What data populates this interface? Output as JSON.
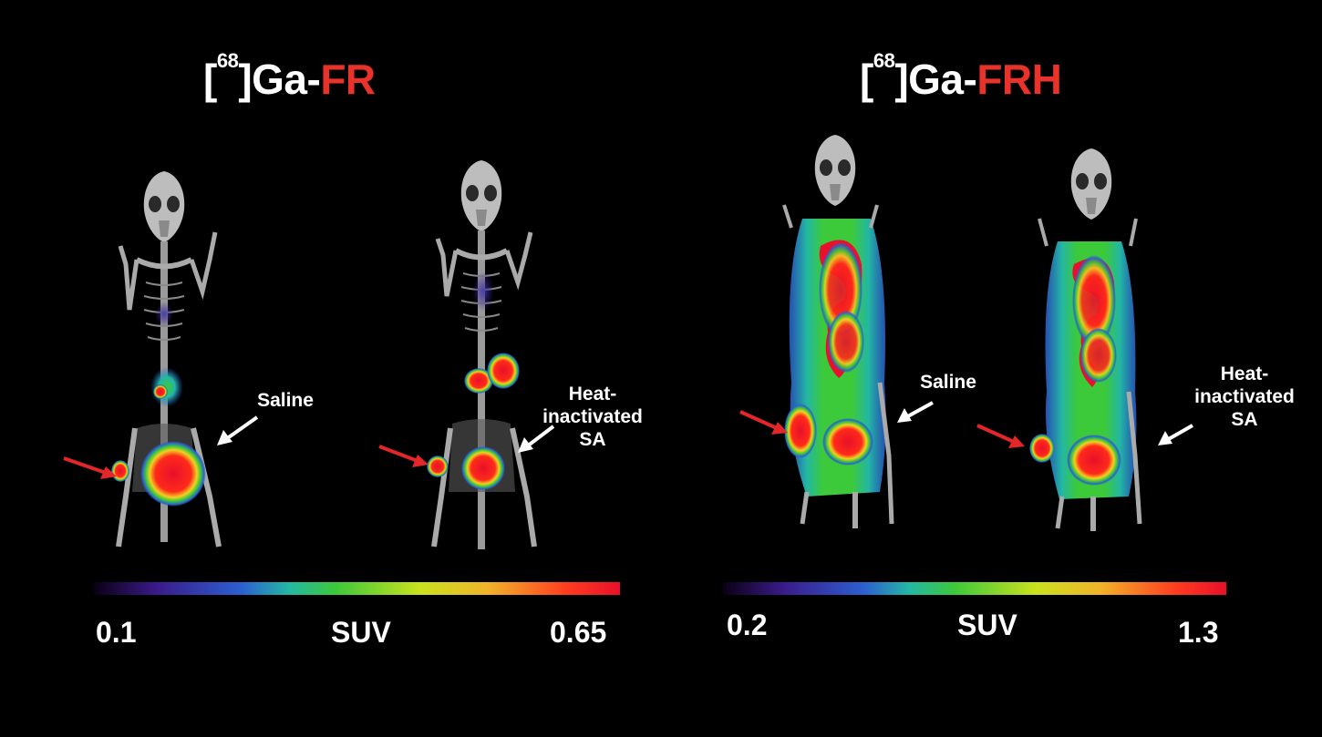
{
  "colors": {
    "background": "#000000",
    "text": "#ffffff",
    "title_highlight": "#e8322a",
    "arrow_red": "#e3262a",
    "arrow_white": "#ffffff",
    "colormap": [
      "#0a0014",
      "#3b1a8a",
      "#2c5fd0",
      "#23b7a4",
      "#3cc93a",
      "#c9e21e",
      "#f2b32a",
      "#ff3b1f",
      "#e8102a"
    ]
  },
  "panels": [
    {
      "title_prefix": "[",
      "title_sup": "68",
      "title_mid": "]Ga-",
      "title_highlight": "FR",
      "subjects": [
        {
          "arrow_label": "Saline"
        },
        {
          "arrow_label": "Heat-\ninactivated\nSA"
        }
      ],
      "colorbar": {
        "min_label": "0.1",
        "unit_label": "SUV",
        "max_label": "0.65"
      }
    },
    {
      "title_prefix": "[",
      "title_sup": "68",
      "title_mid": "]Ga-",
      "title_highlight": "FRH",
      "subjects": [
        {
          "arrow_label": "Saline"
        },
        {
          "arrow_label": "Heat-\ninactivated\nSA"
        }
      ],
      "colorbar": {
        "min_label": "0.2",
        "unit_label": "SUV",
        "max_label": "1.3"
      }
    }
  ]
}
